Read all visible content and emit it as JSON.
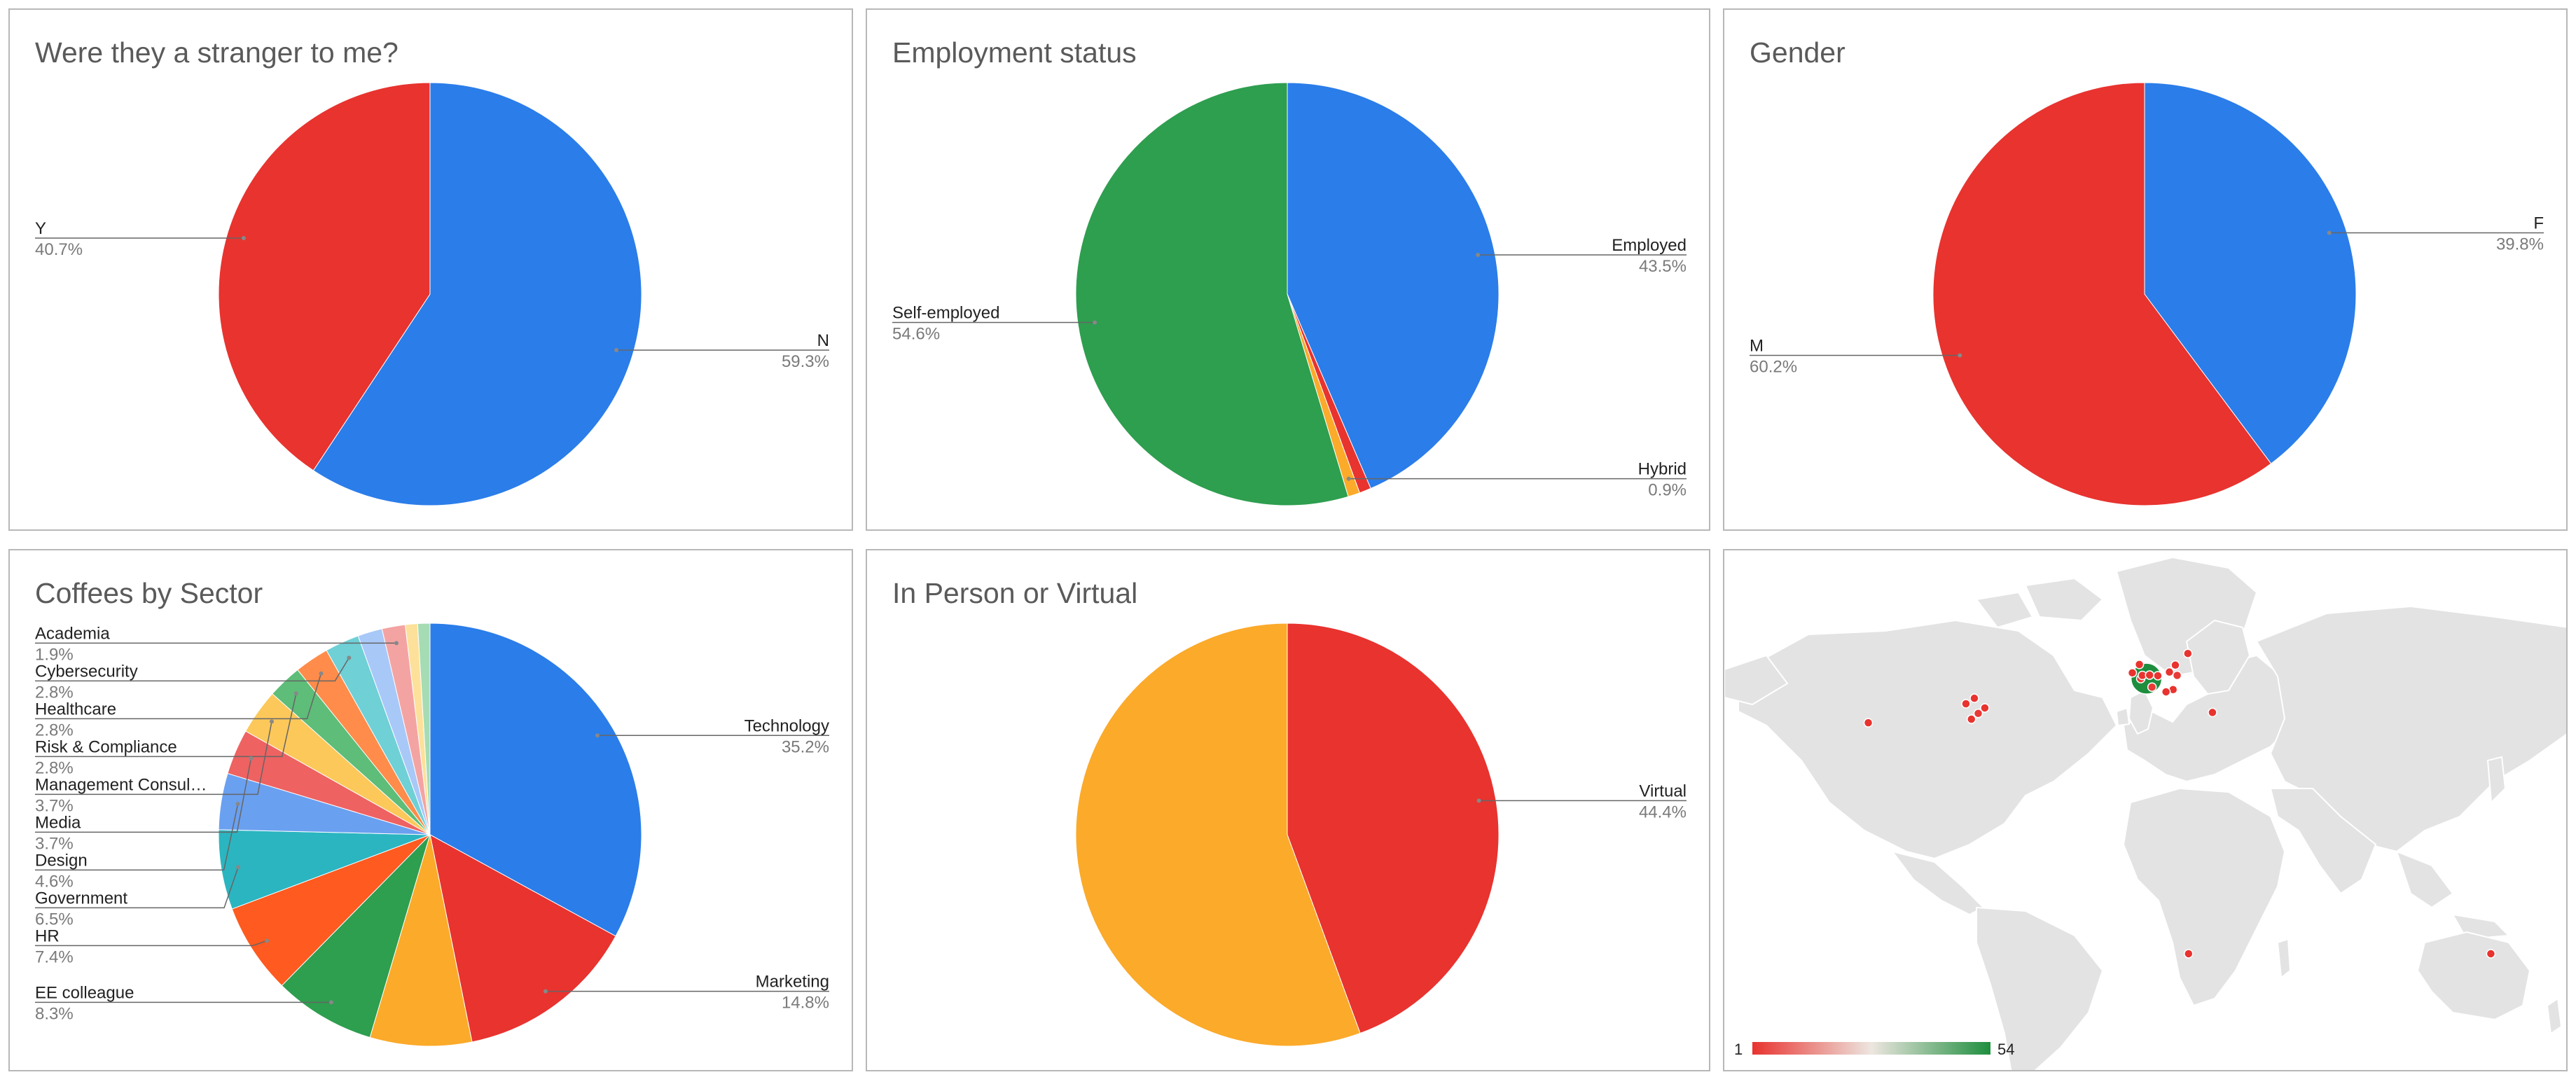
{
  "chart_data": [
    {
      "id": "stranger",
      "type": "pie",
      "title": "Were they a stranger to me?",
      "slices": [
        {
          "label": "N",
          "value": 59.3,
          "pct_text": "59.3%",
          "color": "#2b7de9",
          "side": "right"
        },
        {
          "label": "Y",
          "value": 40.7,
          "pct_text": "40.7%",
          "color": "#e8332f",
          "side": "left"
        }
      ]
    },
    {
      "id": "employment",
      "type": "pie",
      "title": "Employment status",
      "slices": [
        {
          "label": "Employed",
          "value": 43.5,
          "pct_text": "43.5%",
          "color": "#2b7de9",
          "side": "right"
        },
        {
          "label": "",
          "value": 0.9,
          "color": "#e8332f"
        },
        {
          "label": "Hybrid",
          "value": 0.9,
          "pct_text": "0.9%",
          "color": "#fbaa2a",
          "side": "right"
        },
        {
          "label": "Self-employed",
          "value": 54.6,
          "pct_text": "54.6%",
          "color": "#2e9e4f",
          "side": "left"
        }
      ]
    },
    {
      "id": "gender",
      "type": "pie",
      "title": "Gender",
      "slices": [
        {
          "label": "F",
          "value": 39.8,
          "pct_text": "39.8%",
          "color": "#2b7de9",
          "side": "right"
        },
        {
          "label": "M",
          "value": 60.2,
          "pct_text": "60.2%",
          "color": "#e8332f",
          "side": "left"
        }
      ]
    },
    {
      "id": "sector",
      "type": "pie",
      "title": "Coffees by Sector",
      "slices": [
        {
          "label": "Technology",
          "value": 35.2,
          "pct_text": "35.2%",
          "color": "#2b7de9",
          "side": "right"
        },
        {
          "label": "Marketing",
          "value": 14.8,
          "pct_text": "14.8%",
          "color": "#e8332f",
          "side": "right"
        },
        {
          "label": "",
          "value": 8.3,
          "color": "#fbaa2a"
        },
        {
          "label": "EE colleague",
          "value": 8.3,
          "pct_text": "8.3%",
          "color": "#2e9e4f",
          "side": "left"
        },
        {
          "label": "HR",
          "value": 7.4,
          "pct_text": "7.4%",
          "color": "#ff5a1f",
          "side": "left"
        },
        {
          "label": "Government",
          "value": 6.5,
          "pct_text": "6.5%",
          "color": "#2bb5c0",
          "side": "left"
        },
        {
          "label": "Design",
          "value": 4.6,
          "pct_text": "4.6%",
          "color": "#6aa0f0",
          "side": "left"
        },
        {
          "label": "Media",
          "value": 3.7,
          "pct_text": "3.7%",
          "color": "#ee6262",
          "side": "left"
        },
        {
          "label": "Management Consul…",
          "value": 3.7,
          "pct_text": "3.7%",
          "color": "#fcc85a",
          "side": "left"
        },
        {
          "label": "Risk & Compliance",
          "value": 2.8,
          "pct_text": "2.8%",
          "color": "#5ebd78",
          "side": "left"
        },
        {
          "label": "Healthcare",
          "value": 2.8,
          "pct_text": "2.8%",
          "color": "#ff8c4a",
          "side": "left"
        },
        {
          "label": "Cybersecurity",
          "value": 2.8,
          "pct_text": "2.8%",
          "color": "#6fd0d6",
          "side": "left"
        },
        {
          "label": "",
          "value": 2.0,
          "color": "#a8c8f8"
        },
        {
          "label": "Academia",
          "value": 1.9,
          "pct_text": "1.9%",
          "color": "#f4a3a3",
          "side": "left"
        },
        {
          "label": "",
          "value": 1.0,
          "color": "#fde19a"
        },
        {
          "label": "",
          "value": 1.0,
          "color": "#a6dcb3"
        }
      ]
    },
    {
      "id": "inperson",
      "type": "pie",
      "title": "In Person or Virtual",
      "slices": [
        {
          "label": "Virtual",
          "value": 44.4,
          "pct_text": "44.4%",
          "color": "#e8332f",
          "side": "right"
        },
        {
          "label": "",
          "value": 55.6,
          "color": "#fbaa2a"
        }
      ]
    },
    {
      "id": "map",
      "type": "geo",
      "color_scale": {
        "min": 1,
        "max": 54,
        "min_label": "1",
        "max_label": "54",
        "colors": [
          "#e8332f",
          "#ede6e0",
          "#1e8e3e"
        ]
      },
      "markers": [
        {
          "lon": -122.3,
          "lat": 37.8,
          "value": 1
        },
        {
          "lon": -79.4,
          "lat": 43.7,
          "value": 1
        },
        {
          "lon": -77.0,
          "lat": 38.9,
          "value": 1
        },
        {
          "lon": -74.0,
          "lat": 40.7,
          "value": 2
        },
        {
          "lon": -71.1,
          "lat": 42.4,
          "value": 1
        },
        {
          "lon": -75.7,
          "lat": 45.4,
          "value": 1
        },
        {
          "lon": -6.3,
          "lat": 53.3,
          "value": 1
        },
        {
          "lon": -3.2,
          "lat": 55.9,
          "value": 1
        },
        {
          "lon": -0.1,
          "lat": 51.5,
          "value": 54
        },
        {
          "lon": -2.6,
          "lat": 51.5,
          "value": 2
        },
        {
          "lon": -1.9,
          "lat": 52.5,
          "value": 1
        },
        {
          "lon": 1.3,
          "lat": 52.6,
          "value": 1
        },
        {
          "lon": 2.35,
          "lat": 48.86,
          "value": 2
        },
        {
          "lon": 4.9,
          "lat": 52.4,
          "value": 1
        },
        {
          "lon": 10.0,
          "lat": 53.55,
          "value": 1
        },
        {
          "lon": 13.4,
          "lat": 52.5,
          "value": 2
        },
        {
          "lon": 12.6,
          "lat": 55.7,
          "value": 1
        },
        {
          "lon": 18.1,
          "lat": 59.3,
          "value": 1
        },
        {
          "lon": 11.6,
          "lat": 48.1,
          "value": 1
        },
        {
          "lon": 8.5,
          "lat": 47.4,
          "value": 1
        },
        {
          "lon": 28.9,
          "lat": 41.0,
          "value": 1
        },
        {
          "lon": 18.4,
          "lat": -33.9,
          "value": 1
        },
        {
          "lon": 151.2,
          "lat": -33.9,
          "value": 1
        }
      ]
    }
  ]
}
